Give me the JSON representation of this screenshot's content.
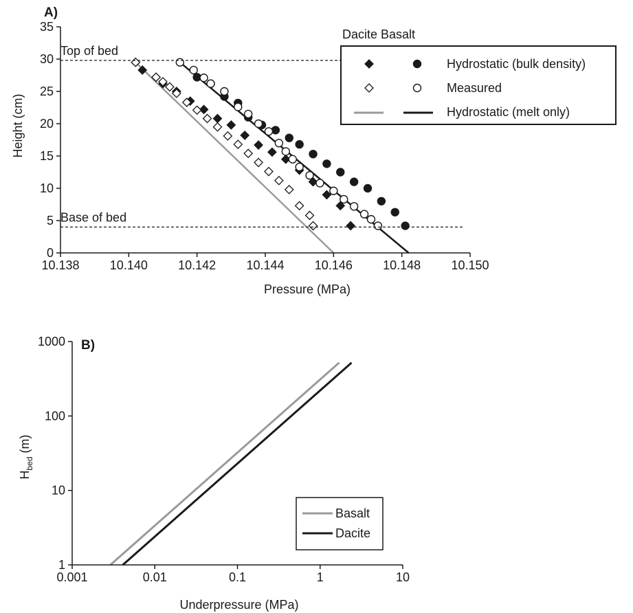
{
  "chart_data": [
    {
      "panel": "A)",
      "type": "scatter",
      "xlabel": "Pressure (MPa)",
      "ylabel": "Height (cm)",
      "xlim": [
        10.138,
        10.15
      ],
      "ylim": [
        0,
        35
      ],
      "xticks": [
        "10.138",
        "10.140",
        "10.142",
        "10.144",
        "10.146",
        "10.148",
        "10.150"
      ],
      "yticks": [
        "0",
        "5",
        "10",
        "15",
        "20",
        "25",
        "30",
        "35"
      ],
      "xtick_values": [
        10.138,
        10.14,
        10.142,
        10.144,
        10.146,
        10.148,
        10.15
      ],
      "ytick_values": [
        0,
        5,
        10,
        15,
        20,
        25,
        30,
        35
      ],
      "grid": false,
      "legend_placement": "top-right",
      "legend_header": "Dacite Basalt",
      "legend_rows": [
        "Hydrostatic (bulk density)",
        "Measured",
        "Hydrostatic (melt only)"
      ],
      "annotations": [
        {
          "text": "Top of bed",
          "y": 29.8
        },
        {
          "text": "Base of bed",
          "y": 4.0
        }
      ],
      "series": [
        {
          "material": "Dacite",
          "kind": "Hydrostatic (bulk density)",
          "marker": "diamond-filled",
          "x": [
            10.1402,
            10.1404,
            10.1408,
            10.141,
            10.1414,
            10.1418,
            10.1422,
            10.1426,
            10.143,
            10.1434,
            10.1438,
            10.1442,
            10.1446,
            10.145,
            10.1454,
            10.1458,
            10.1462,
            10.1465
          ],
          "y": [
            29.5,
            28.3,
            27.2,
            26.2,
            25.0,
            23.5,
            22.2,
            20.8,
            19.8,
            18.2,
            16.7,
            15.6,
            14.5,
            12.8,
            11.0,
            9.0,
            7.3,
            4.2
          ]
        },
        {
          "material": "Dacite",
          "kind": "Measured",
          "marker": "diamond-open",
          "x": [
            10.1402,
            10.1408,
            10.141,
            10.1412,
            10.1414,
            10.1417,
            10.142,
            10.1423,
            10.1426,
            10.1429,
            10.1432,
            10.1435,
            10.1438,
            10.1441,
            10.1444,
            10.1447,
            10.145,
            10.1453,
            10.1454
          ],
          "y": [
            29.5,
            27.2,
            26.5,
            25.7,
            24.7,
            23.3,
            22.1,
            20.8,
            19.5,
            18.1,
            16.8,
            15.4,
            14.0,
            12.6,
            11.2,
            9.8,
            7.3,
            5.8,
            4.2
          ]
        },
        {
          "material": "Dacite",
          "kind": "Hydrostatic (melt only)",
          "marker": "line",
          "x": [
            10.1402,
            10.146
          ],
          "y": [
            29.5,
            0
          ]
        },
        {
          "material": "Basalt",
          "kind": "Hydrostatic (bulk density)",
          "marker": "circle-filled",
          "x": [
            10.142,
            10.1424,
            10.1428,
            10.1432,
            10.1435,
            10.1439,
            10.1443,
            10.1447,
            10.145,
            10.1454,
            10.1458,
            10.1462,
            10.1466,
            10.147,
            10.1474,
            10.1478,
            10.1481
          ],
          "y": [
            27.2,
            26.2,
            24.2,
            23.2,
            21.0,
            19.8,
            19.0,
            17.8,
            16.8,
            15.3,
            13.8,
            12.5,
            11.0,
            10.0,
            8.0,
            6.3,
            4.2
          ]
        },
        {
          "material": "Basalt",
          "kind": "Measured",
          "marker": "circle-open",
          "x": [
            10.1415,
            10.1419,
            10.1422,
            10.1424,
            10.1428,
            10.1432,
            10.1435,
            10.1438,
            10.1441,
            10.1444,
            10.1446,
            10.1448,
            10.145,
            10.1453,
            10.1456,
            10.146,
            10.1463,
            10.1466,
            10.1469,
            10.1471,
            10.1473
          ],
          "y": [
            29.5,
            28.3,
            27.1,
            26.2,
            25.0,
            22.6,
            21.5,
            20.0,
            18.8,
            17.0,
            15.7,
            14.5,
            13.3,
            12.0,
            10.8,
            9.6,
            8.3,
            7.2,
            6.0,
            5.2,
            4.2
          ]
        },
        {
          "material": "Basalt",
          "kind": "Hydrostatic (melt only)",
          "marker": "line",
          "x": [
            10.1415,
            10.1482
          ],
          "y": [
            29.5,
            0
          ]
        }
      ]
    },
    {
      "panel": "B)",
      "type": "line",
      "xlabel": "Underpressure (MPa)",
      "ylabel_main": "H",
      "ylabel_sub": "bed",
      "ylabel_unit": " (m)",
      "xscale": "log",
      "yscale": "log",
      "xlim": [
        0.001,
        10
      ],
      "ylim": [
        1,
        1000
      ],
      "xticks": [
        "0.001",
        "0.01",
        "0.1",
        "1",
        "10"
      ],
      "yticks": [
        "1",
        "10",
        "100",
        "1000"
      ],
      "xtick_values": [
        0.001,
        0.01,
        0.1,
        1,
        10
      ],
      "ytick_values": [
        1,
        10,
        100,
        1000
      ],
      "grid": false,
      "legend_placement": "bottom-right",
      "series": [
        {
          "name": "Basalt",
          "x": [
            0.0029,
            1.7
          ],
          "y": [
            1,
            520
          ]
        },
        {
          "name": "Dacite",
          "x": [
            0.0041,
            2.4
          ],
          "y": [
            1,
            520
          ]
        }
      ]
    }
  ],
  "colors": {
    "axis": "#1a1a1a",
    "dacite": "#9a9a9a",
    "basalt": "#1a1a1a",
    "marker": "#1a1a1a"
  }
}
